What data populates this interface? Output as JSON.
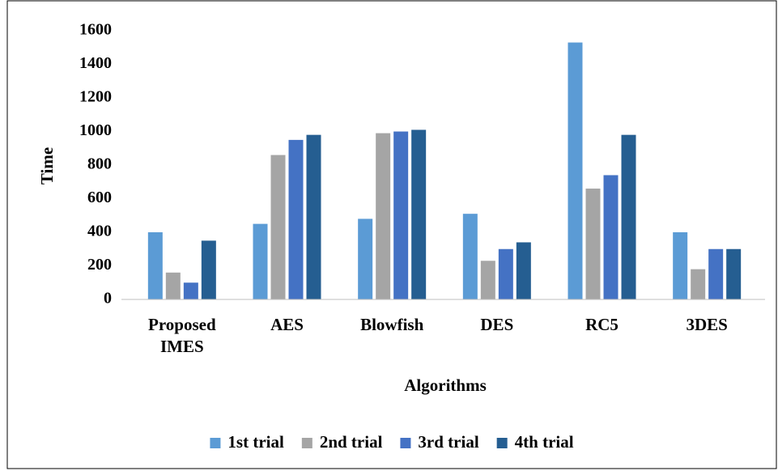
{
  "chart_data": {
    "type": "bar",
    "y_label": "Time",
    "x_label": "Algorithms",
    "categories": [
      "Proposed IMES",
      "AES",
      "Blowfish",
      "DES",
      "RC5",
      "3DES"
    ],
    "series": [
      {
        "name": "1st trial",
        "color": "#5b9bd5",
        "values": [
          400,
          450,
          480,
          510,
          1530,
          400
        ]
      },
      {
        "name": "2nd trial",
        "color": "#a5a5a5",
        "values": [
          160,
          860,
          990,
          230,
          660,
          180
        ]
      },
      {
        "name": "3rd trial",
        "color": "#4472c4",
        "values": [
          100,
          950,
          1000,
          300,
          740,
          300
        ]
      },
      {
        "name": "4th trial",
        "color": "#255e91",
        "values": [
          350,
          980,
          1010,
          340,
          980,
          300
        ]
      }
    ],
    "ylim": [
      0,
      1600
    ],
    "yticks": [
      0,
      200,
      400,
      600,
      800,
      1000,
      1200,
      1400,
      1600
    ],
    "grid": false,
    "legend": "bottom"
  }
}
